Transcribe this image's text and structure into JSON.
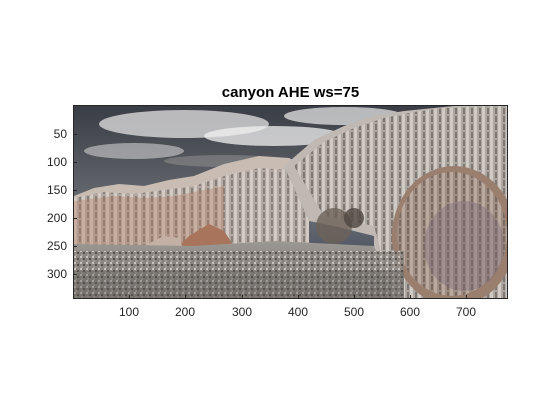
{
  "figure": {
    "title": "canyon AHE ws=75",
    "x_ticks": [
      "100",
      "200",
      "300",
      "400",
      "500",
      "600",
      "700"
    ],
    "y_ticks": [
      "50",
      "100",
      "150",
      "200",
      "250",
      "300"
    ]
  },
  "image": {
    "description_colors": {
      "sky_dark": "#2b2f3a",
      "cloud": "#e8e8e8",
      "rock_light": "#c9c3bf",
      "rock_warm": "#b57b62",
      "ground": "#8d8a86"
    }
  }
}
